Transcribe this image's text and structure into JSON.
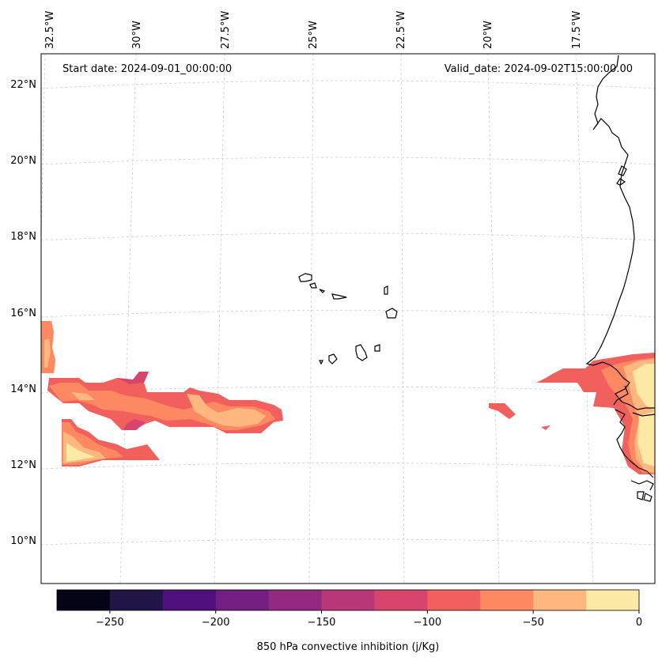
{
  "map": {
    "start_date": "Start date: 2024-09-01_00:00:00",
    "valid_date": "Valid_date: 2024-09-02T15:00:00.00",
    "lon_labels": [
      "32.5°W",
      "30°W",
      "27.5°W",
      "25°W",
      "22.5°W",
      "20°W",
      "17.5°W"
    ],
    "lat_labels": [
      "22°N",
      "20°N",
      "18°N",
      "16°N",
      "14°N",
      "12°N",
      "10°N"
    ],
    "field_variable": "850 hPa convective inhibition"
  },
  "colorbar": {
    "label": "850 hPa convective inhibition (j/Kg)",
    "tick_labels": [
      "−250",
      "−200",
      "−150",
      "−100",
      "−50",
      "0"
    ],
    "colors": [
      "#050417",
      "#211447",
      "#4f117b",
      "#721f81",
      "#932a80",
      "#b73779",
      "#d8456c",
      "#f1605d",
      "#fc8961",
      "#feb77e",
      "#fce9a6"
    ],
    "range": [
      -275,
      0
    ]
  }
}
